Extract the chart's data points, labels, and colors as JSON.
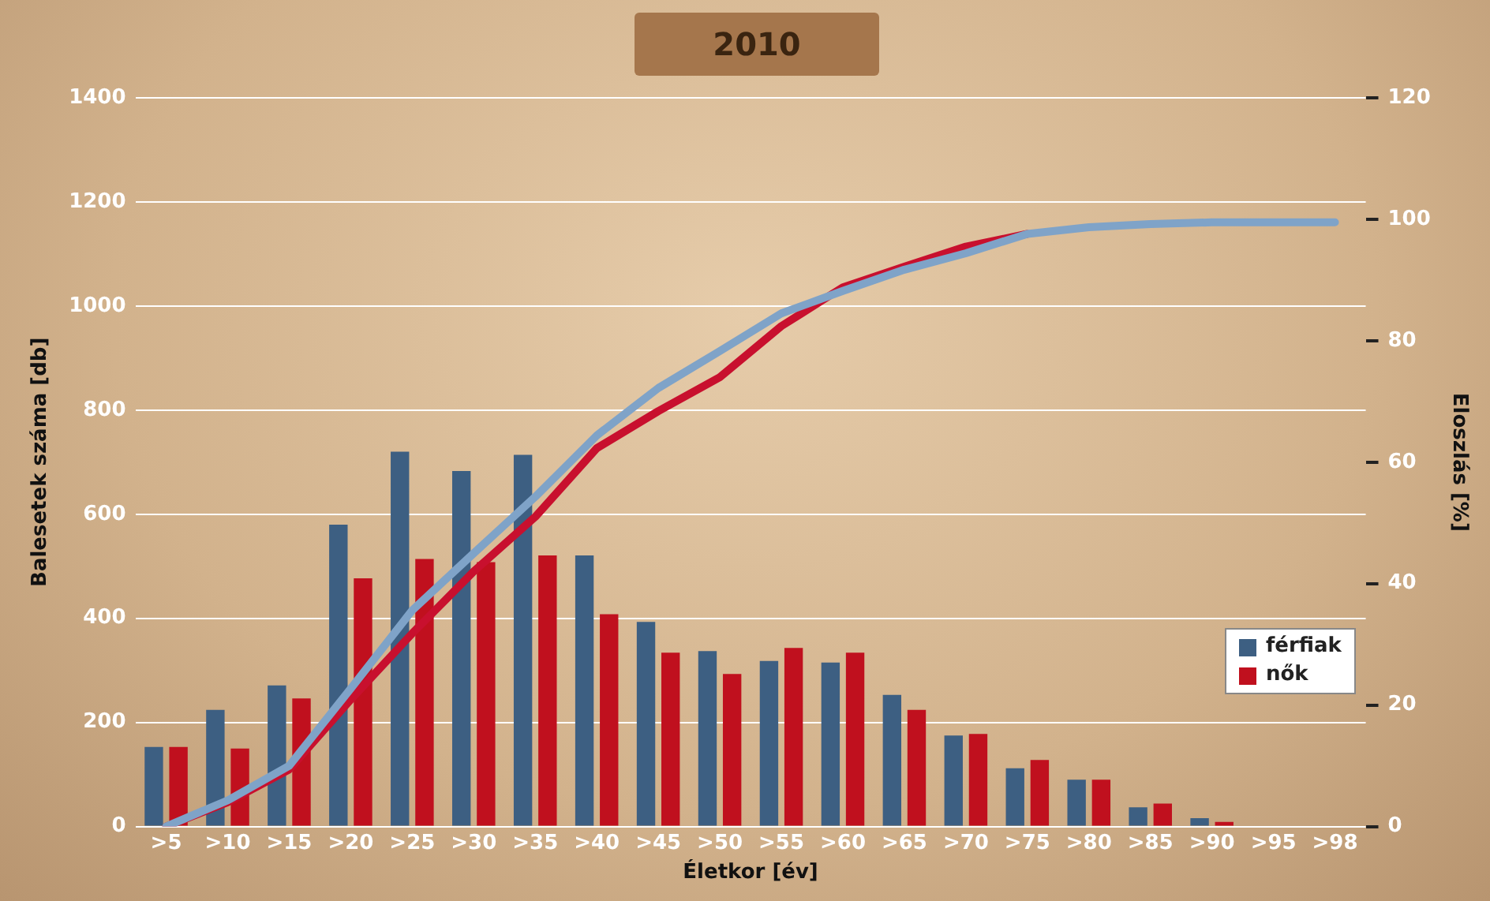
{
  "chart_data": {
    "type": "bar",
    "title": "2010",
    "xlabel": "Életkor [év]",
    "ylabel": "Balesetek száma [db]",
    "y2label": "Eloszlás [%]",
    "categories": [
      ">5",
      ">10",
      ">15",
      ">20",
      ">25",
      ">30",
      ">35",
      ">40",
      ">45",
      ">50",
      ">55",
      ">60",
      ">65",
      ">70",
      ">75",
      ">80",
      ">85",
      ">90",
      ">95",
      ">98"
    ],
    "series": [
      {
        "name": "férfiak",
        "color": "#3d5f82",
        "values": [
          153,
          224,
          271,
          580,
          720,
          683,
          714,
          521,
          393,
          337,
          318,
          315,
          253,
          175,
          112,
          90,
          37,
          16,
          0,
          0
        ]
      },
      {
        "name": "nők",
        "color": "#c0101e",
        "values": [
          153,
          150,
          246,
          477,
          514,
          508,
          521,
          408,
          334,
          293,
          343,
          334,
          224,
          178,
          128,
          90,
          44,
          9,
          0,
          0
        ]
      },
      {
        "type": "line",
        "axis": "y2",
        "color": "#c8102e",
        "values": [
          0,
          4,
          9.4,
          20.9,
          31.8,
          42,
          51,
          62.3,
          68.4,
          74,
          82.4,
          88.8,
          92.2,
          95.5,
          97.6,
          null,
          null,
          null,
          null,
          null
        ]
      },
      {
        "type": "line",
        "axis": "y2",
        "color": "#7fa3c8",
        "values": [
          0,
          4.3,
          10,
          22.7,
          35.6,
          45,
          54.3,
          64.4,
          72.2,
          78.3,
          84.5,
          88.2,
          91.7,
          94.4,
          97.6,
          98.7,
          99.2,
          99.5,
          99.5,
          99.5
        ]
      }
    ],
    "ylim": [
      0,
      1400
    ],
    "yticks": [
      0,
      200,
      400,
      600,
      800,
      1000,
      1200,
      1400
    ],
    "y2lim": [
      0,
      120
    ],
    "y2ticks": [
      0,
      20,
      40,
      60,
      80,
      100,
      120
    ],
    "grid": "y",
    "legend": "right",
    "marker": "none",
    "line_style": "solid"
  }
}
